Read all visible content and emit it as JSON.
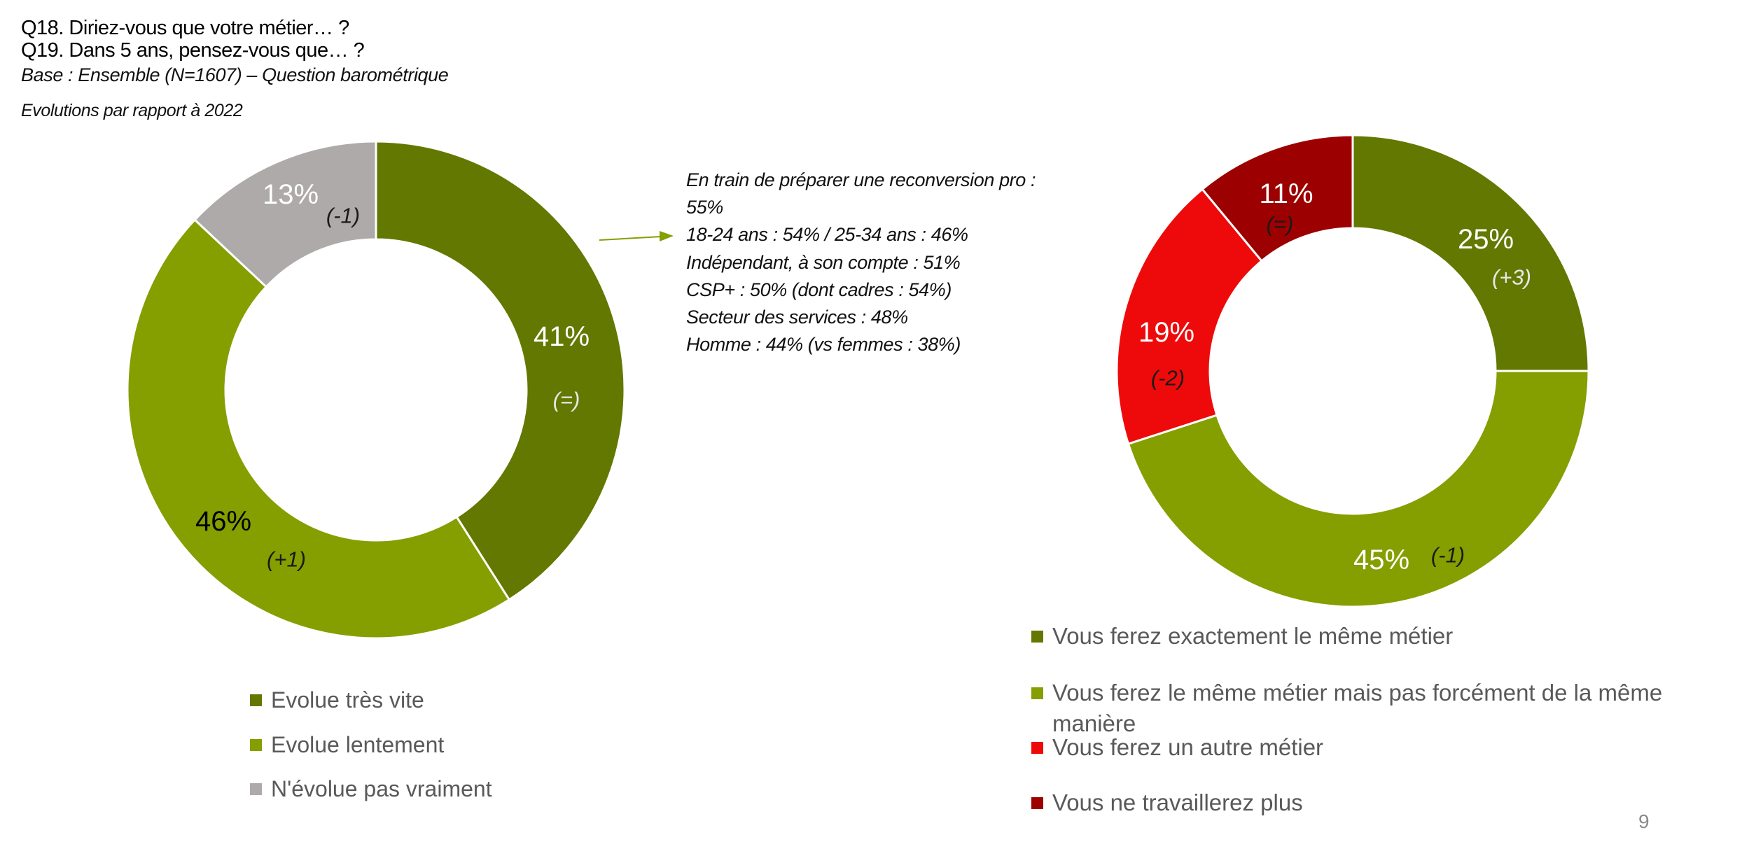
{
  "header": {
    "q18": "Q18. Diriez-vous que votre métier… ?",
    "q19": "Q19. Dans 5 ans, pensez-vous que… ?",
    "base": "Base : Ensemble (N=1607) – Question barométrique",
    "evolutions": "Evolutions par rapport à 2022"
  },
  "annotation": {
    "lines": [
      "En train de préparer une reconversion pro :",
      "55%",
      "18-24 ans : 54% / 25-34 ans : 46%",
      "Indépendant, à son compte : 51%",
      "CSP+ : 50% (dont cadres : 54%)",
      "Secteur des services : 48%",
      "Homme : 44% (vs femmes : 38%)"
    ],
    "arrow_color": "#859E00"
  },
  "page_number": "9",
  "chart_data": [
    {
      "type": "pie",
      "subtype": "donut",
      "question": "Q18",
      "categories": [
        "Evolue très vite",
        "Evolue lentement",
        "N'évolue pas vraiment"
      ],
      "values": [
        41,
        46,
        13
      ],
      "value_labels": [
        "41%",
        "46%",
        "13%"
      ],
      "evolutions": [
        "(=)",
        "(+1)",
        "(-1)"
      ],
      "colors": [
        "#637800",
        "#859E00",
        "#AEAAAA"
      ],
      "value_label_colors": [
        "#ffffff",
        "#000000",
        "#ffffff"
      ],
      "evolution_label_colors": [
        "#e8e8e8",
        "#1a1a1a",
        "#1a1a1a"
      ],
      "legend_position": "bottom"
    },
    {
      "type": "pie",
      "subtype": "donut",
      "question": "Q19",
      "categories": [
        "Vous ferez exactement le même métier",
        "Vous ferez le même métier mais pas forcément de la même manière",
        "Vous ferez un autre métier",
        "Vous ne travaillerez plus"
      ],
      "legend_lines": [
        [
          "Vous ferez exactement le même métier"
        ],
        [
          "Vous ferez le même métier mais pas forcément de la même",
          "manière"
        ],
        [
          "Vous ferez un autre métier"
        ],
        [
          "Vous ne travaillerez plus"
        ]
      ],
      "values": [
        25,
        45,
        19,
        11
      ],
      "value_labels": [
        "25%",
        "45%",
        "19%",
        "11%"
      ],
      "evolutions": [
        "(+3)",
        "(-1)",
        "(-2)",
        "(=)"
      ],
      "colors": [
        "#637800",
        "#859E00",
        "#EE0A0A",
        "#9C0000"
      ],
      "value_label_colors": [
        "#ffffff",
        "#ffffff",
        "#ffffff",
        "#ffffff"
      ],
      "evolution_label_colors": [
        "#e8e8e8",
        "#1a1a1a",
        "#1a1a1a",
        "#1a1a1a"
      ],
      "legend_position": "bottom"
    }
  ]
}
